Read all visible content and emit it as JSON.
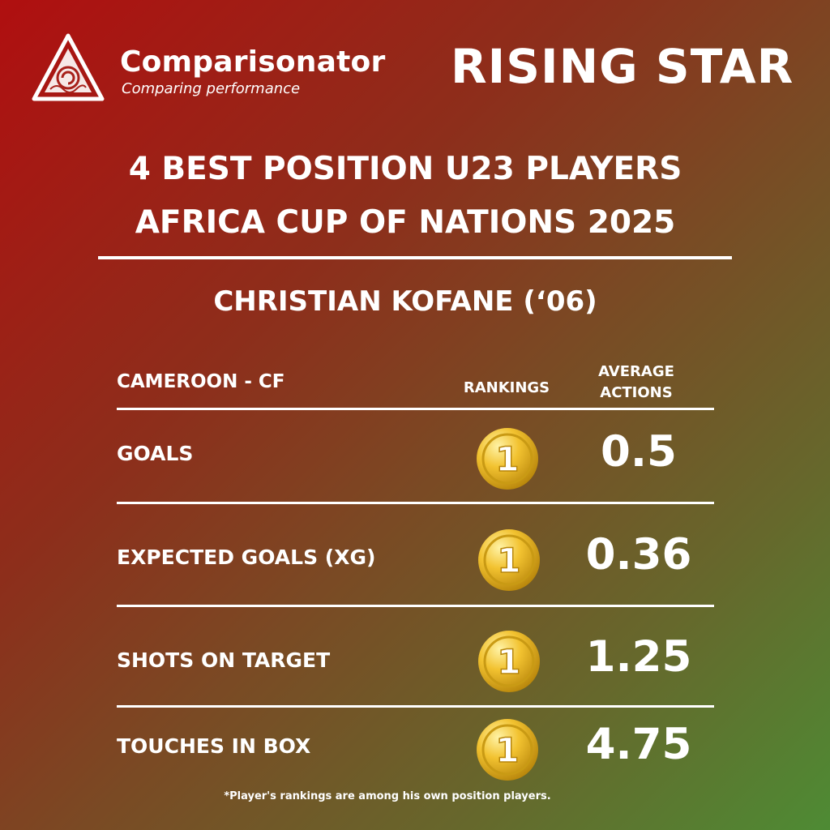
{
  "brand": {
    "name": "Comparisonator",
    "tagline": "Comparing performance",
    "logo_icon": "triangle-swirl-logo-icon"
  },
  "banner": "RISING STAR",
  "headline": {
    "line1": "4 BEST POSITION U23 PLAYERS",
    "line2": "AFRICA CUP OF NATIONS 2025"
  },
  "player": {
    "name": "CHRISTIAN KOFANE (‘06)",
    "team_position": "CAMEROON - CF"
  },
  "columns": {
    "rankings": "RANKINGS",
    "average_line1": "AVERAGE",
    "average_line2": "ACTIONS"
  },
  "metrics": [
    {
      "label": "GOALS",
      "rank": "1",
      "value": "0.5"
    },
    {
      "label": "EXPECTED GOALS (XG)",
      "rank": "1",
      "value": "0.36"
    },
    {
      "label": "SHOTS ON TARGET",
      "rank": "1",
      "value": "1.25"
    },
    {
      "label": "TOUCHES IN BOX",
      "rank": "1",
      "value": "4.75"
    }
  ],
  "footnote": "*Player's rankings are among his own position players.",
  "colors": {
    "gradient_start": "#b00f10",
    "gradient_end": "#4e8b34",
    "medal_gold": "#f2c230",
    "text": "#ffffff"
  }
}
